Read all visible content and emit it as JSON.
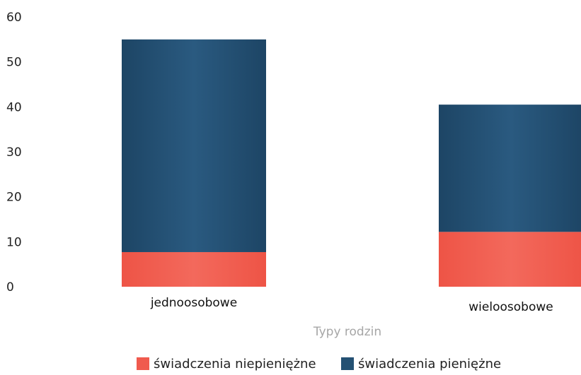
{
  "chart_data": {
    "type": "bar",
    "stacked": true,
    "categories": [
      "jednoosobowe",
      "wieloosobowe"
    ],
    "series": [
      {
        "name": "świadczenia niepieniężne",
        "values": [
          7.7,
          12.2
        ],
        "color": "#f05a4e"
      },
      {
        "name": "świadczenia pieniężne",
        "values": [
          47.3,
          28.3
        ],
        "color": "#245173"
      }
    ],
    "xlabel": "Typy rodzin",
    "ylabel": "",
    "ylim": [
      0,
      60
    ],
    "yticks": [
      0,
      10,
      20,
      30,
      40,
      50,
      60
    ],
    "grid": false,
    "legend_position": "bottom-center"
  }
}
